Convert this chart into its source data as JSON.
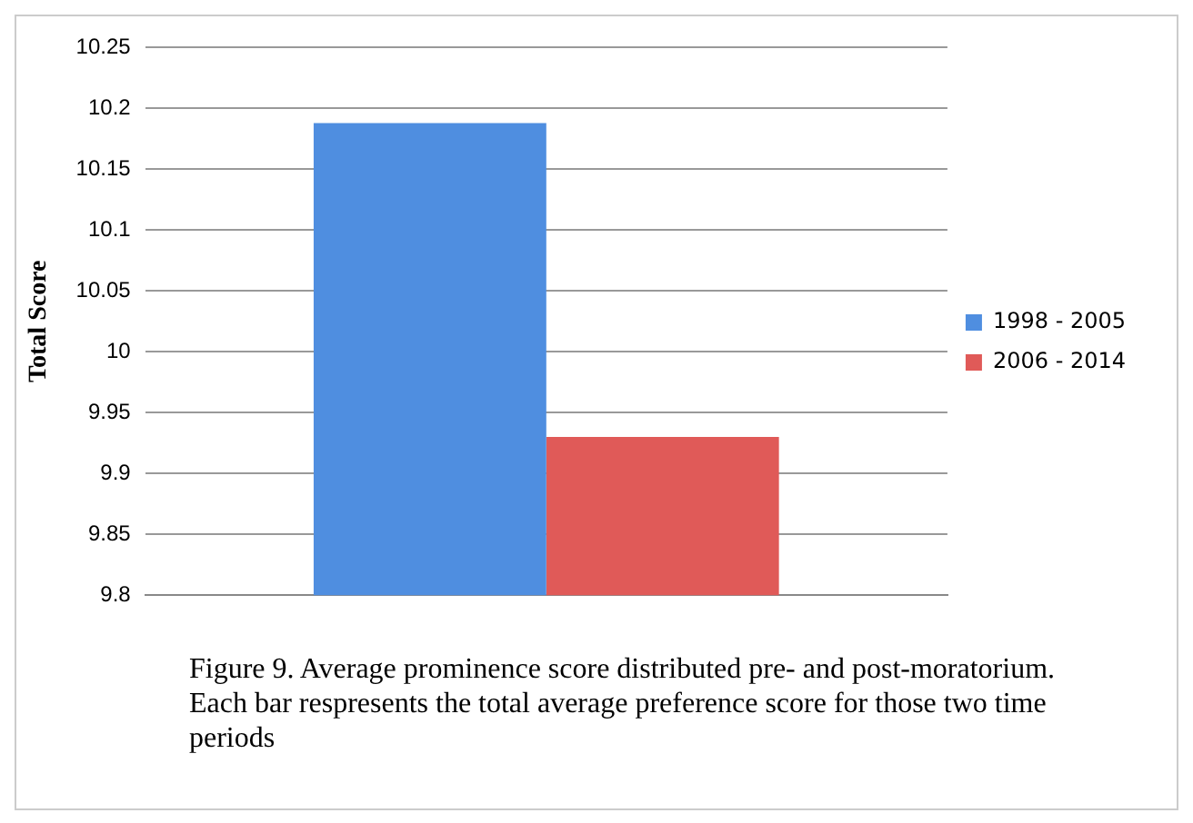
{
  "chart_data": {
    "type": "bar",
    "ylabel": "Total Score",
    "categories": [
      null
    ],
    "series": [
      {
        "name": "1998 - 2005",
        "color": "#4f8ee0",
        "values": [
          10.188
        ]
      },
      {
        "name": "2006 - 2014",
        "color": "#e05a58",
        "values": [
          9.93
        ]
      }
    ],
    "ylim": [
      9.8,
      10.25
    ],
    "yticks": [
      9.8,
      9.85,
      9.9,
      9.95,
      10,
      10.05,
      10.1,
      10.15,
      10.2,
      10.25
    ],
    "grid": "y",
    "legend": "right",
    "annotations": [
      "Figure 9. Average prominence score distributed pre- and post-moratorium. Each bar respresents the total average preference score for those two time periods"
    ]
  }
}
